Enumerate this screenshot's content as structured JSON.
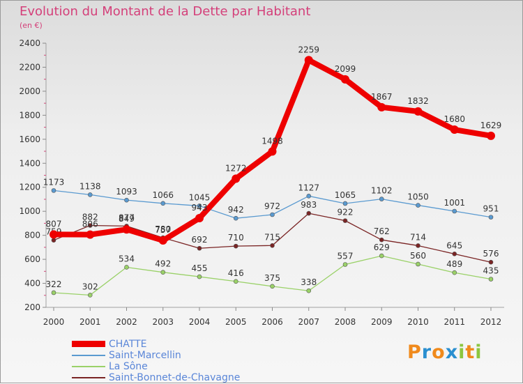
{
  "title": "Evolution du Montant de la Dette par Habitant",
  "subtitle": "(en €)",
  "chart_data": {
    "type": "line",
    "title": "Evolution du Montant de la Dette par Habitant",
    "subtitle": "(en €)",
    "x": [
      "2000",
      "2001",
      "2002",
      "2003",
      "2004",
      "2005",
      "2006",
      "2007",
      "2008",
      "2009",
      "2010",
      "2011",
      "2012"
    ],
    "ylim": [
      200,
      2400
    ],
    "yticks": [
      200,
      400,
      600,
      800,
      1000,
      1200,
      1400,
      1600,
      1800,
      2000,
      2200,
      2400
    ],
    "grid": false,
    "legend_position": "bottom-left",
    "series": [
      {
        "name": "Saint-Marcellin",
        "color": "#5a9ad0",
        "values": [
          1173,
          1138,
          1093,
          1066,
          1045,
          942,
          972,
          1127,
          1065,
          1102,
          1050,
          1001,
          951
        ],
        "labels": [
          "1173",
          "1138",
          "1093",
          "1066",
          "1045",
          "942",
          "972",
          "1127",
          "1065",
          "1102",
          "1050",
          "1001",
          "951"
        ]
      },
      {
        "name": "La Sône",
        "color": "#9ad168",
        "values": [
          322,
          302,
          534,
          492,
          455,
          416,
          375,
          338,
          557,
          629,
          560,
          489,
          435
        ],
        "labels": [
          "322",
          "302",
          "534",
          "492",
          "455",
          "416",
          "375",
          "338",
          "557",
          "629",
          "560",
          "489",
          "435"
        ]
      },
      {
        "name": "Saint-Bonnet-de-Chavagne",
        "color": "#7a2424",
        "values": [
          759,
          882,
          877,
          780,
          692,
          710,
          715,
          983,
          922,
          762,
          714,
          645,
          576
        ],
        "labels": [
          "759",
          "882",
          "877",
          "780",
          "692",
          "710",
          "715",
          "983",
          "922",
          "762",
          "714",
          "645",
          "576"
        ]
      },
      {
        "name": "CHATTE",
        "color": "#ee0000",
        "values": [
          807,
          806,
          849,
          757,
          943,
          1272,
          1498,
          2259,
          2099,
          1867,
          1832,
          1680,
          1629
        ],
        "labels": [
          "807",
          "806",
          "849",
          "757",
          "943",
          "1272",
          "1498",
          "2259",
          "2099",
          "1867",
          "1832",
          "1680",
          "1629"
        ]
      }
    ],
    "legend": [
      "CHATTE",
      "Saint-Marcellin",
      "La Sône",
      "Saint-Bonnet-de-Chavagne"
    ]
  },
  "logo": {
    "text": "Proxiti",
    "letters": [
      "P",
      "r",
      "o",
      "x",
      "i",
      "t",
      "i"
    ],
    "colors": [
      "#f08a1c",
      "#2a8fd0",
      "#f08a1c",
      "#2a8fd0",
      "#8cc63f",
      "#f08a1c",
      "#8cc63f"
    ]
  }
}
